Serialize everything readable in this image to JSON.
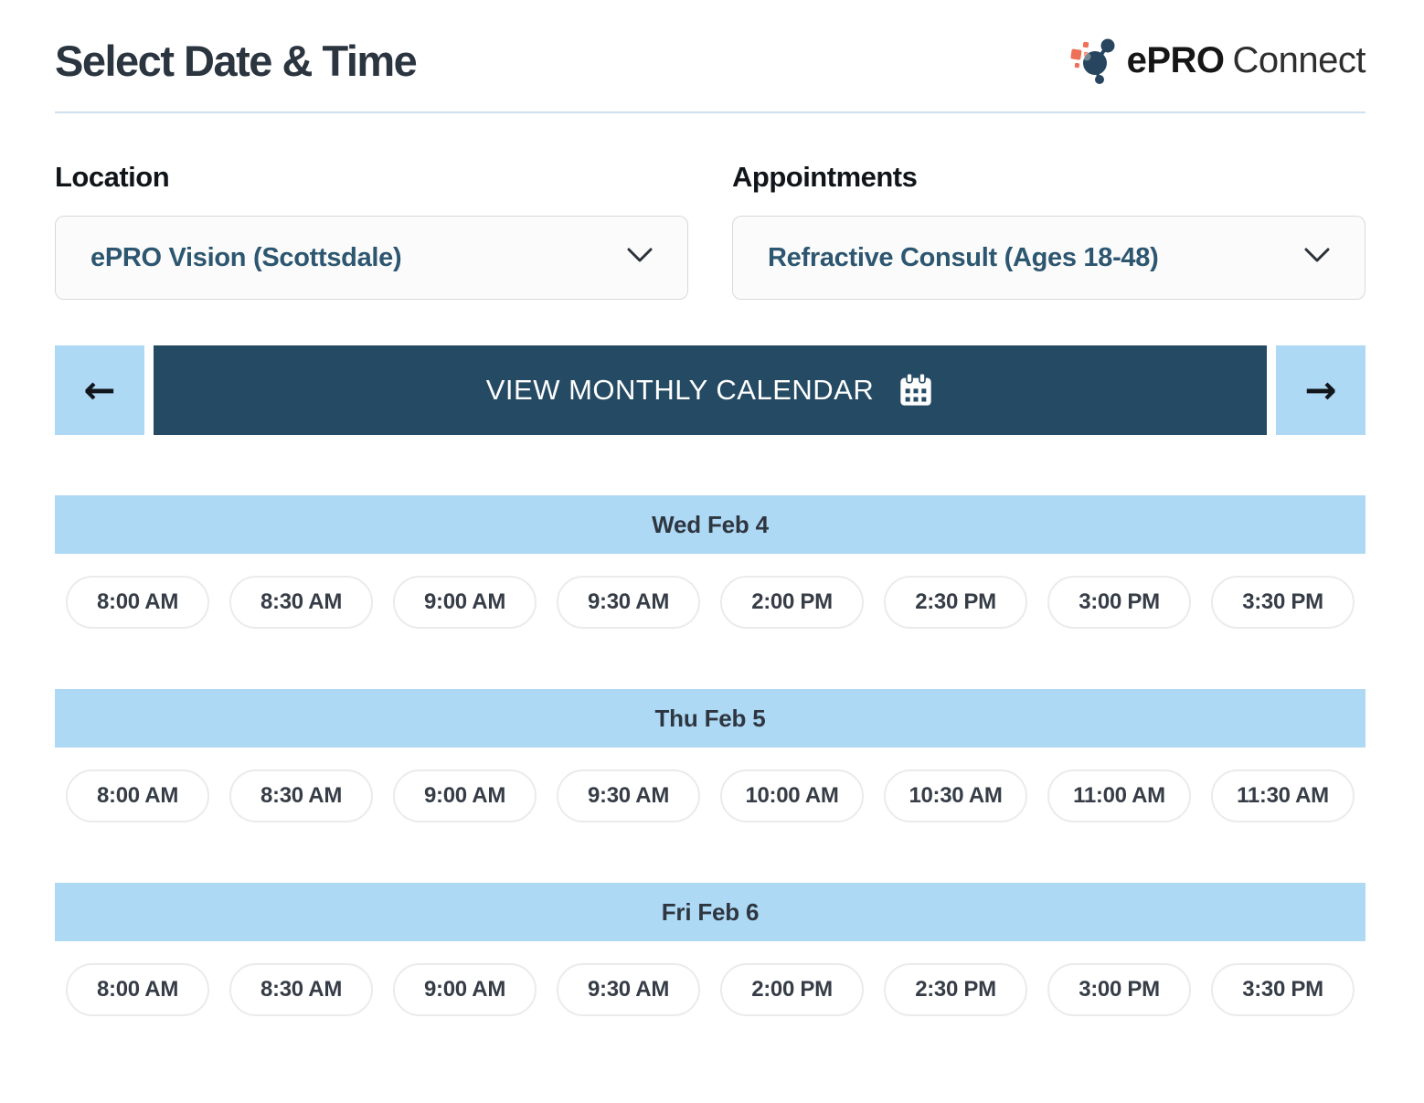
{
  "page": {
    "title": "Select Date & Time"
  },
  "brand": {
    "bold": "ePRO",
    "light": "Connect"
  },
  "fields": {
    "location": {
      "label": "Location",
      "value": "ePRO Vision (Scottsdale)"
    },
    "appointments": {
      "label": "Appointments",
      "value": "Refractive Consult (Ages 18-48)"
    }
  },
  "calendar_nav": {
    "prev_icon": "arrow-left-icon",
    "next_icon": "arrow-right-icon",
    "label": "VIEW MONTHLY CALENDAR",
    "icon": "calendar-icon"
  },
  "days": [
    {
      "label": "Wed Feb 4",
      "slots": [
        "8:00 AM",
        "8:30 AM",
        "9:00 AM",
        "9:30 AM",
        "2:00 PM",
        "2:30 PM",
        "3:00 PM",
        "3:30 PM"
      ]
    },
    {
      "label": "Thu Feb 5",
      "slots": [
        "8:00 AM",
        "8:30 AM",
        "9:00 AM",
        "9:30 AM",
        "10:00 AM",
        "10:30 AM",
        "11:00 AM",
        "11:30 AM"
      ]
    },
    {
      "label": "Fri Feb 6",
      "slots": [
        "8:00 AM",
        "8:30 AM",
        "9:00 AM",
        "9:30 AM",
        "2:00 PM",
        "2:30 PM",
        "3:00 PM",
        "3:30 PM"
      ]
    }
  ],
  "colors": {
    "navy": "#254a63",
    "light_blue": "#aed9f5",
    "select_text": "#2d5670",
    "logo_coral": "#ef7058",
    "logo_navy": "#27455f",
    "divider": "#cfe0ee"
  }
}
